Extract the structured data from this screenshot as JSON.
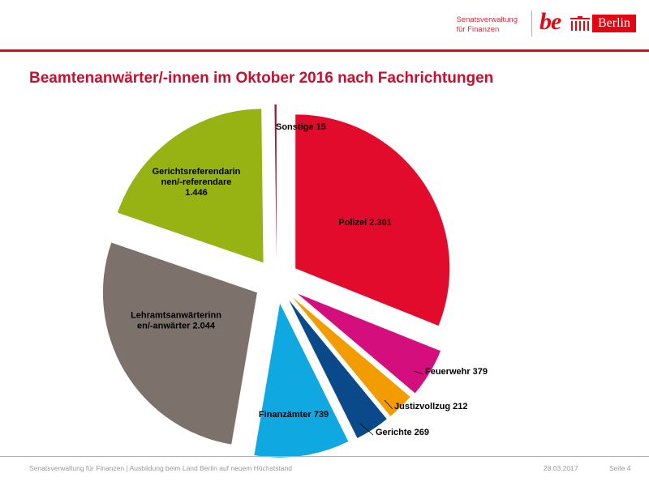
{
  "header": {
    "org_line1": "Senatsverwaltung",
    "org_line2": "für Finanzen",
    "logo_be": "be",
    "logo_berlin": "Berlin",
    "brand_color": "#e30613"
  },
  "title": "Beamtenanwärter/-innen im Oktober 2016 nach Fachrichtungen",
  "chart_data": {
    "type": "pie",
    "title": "Beamtenanwärter/-innen im Oktober 2016 nach Fachrichtungen",
    "exploded": true,
    "start": "12 o'clock, clockwise",
    "slices": [
      {
        "label": "Polizei",
        "value": 2301,
        "display": "Polizei  2.301",
        "color": "#e30b2c",
        "label_lines": [
          "Polizei  2.301"
        ]
      },
      {
        "label": "Feuerwehr",
        "value": 379,
        "display": "Feuerwehr  379",
        "color": "#d40f7d",
        "label_lines": [
          "Feuerwehr  379"
        ]
      },
      {
        "label": "Justizvollzug",
        "value": 212,
        "display": "Justizvollzug  212",
        "color": "#f39c00",
        "label_lines": [
          "Justizvollzug  212"
        ]
      },
      {
        "label": "Gerichte",
        "value": 269,
        "display": "Gerichte  269",
        "color": "#0a4a8a",
        "label_lines": [
          "Gerichte  269"
        ]
      },
      {
        "label": "Finanzämter",
        "value": 739,
        "display": "Finanzämter  739",
        "color": "#0fa8e0",
        "label_lines": [
          "Finanzämter  739"
        ]
      },
      {
        "label": "Lehramtsanwärterinnen/-anwärter",
        "value": 2044,
        "display": "Lehramtsanwärterinn en/-anwärter  2.044",
        "color": "#7d716c",
        "label_lines": [
          "Lehramtsanwärterinn",
          "en/-anwärter  2.044"
        ]
      },
      {
        "label": "Gerichtsreferendarinnen/-referendare",
        "value": 1446,
        "display": "Gerichtsreferendarin nen/-referendare 1.446",
        "color": "#96b313",
        "label_lines": [
          "Gerichtsreferendarin",
          "nen/-referendare",
          "1.446"
        ]
      },
      {
        "label": "Sonstige",
        "value": 15,
        "display": "Sonstige  15",
        "color": "#9b1b30",
        "label_lines": [
          "Sonstige  15"
        ]
      }
    ]
  },
  "footer": {
    "left": "Senatsverwaltung für Finanzen | Ausbildung beim Land Berlin auf neuem Höchststand",
    "date": "28.03.2017",
    "page": "Seite 4"
  }
}
